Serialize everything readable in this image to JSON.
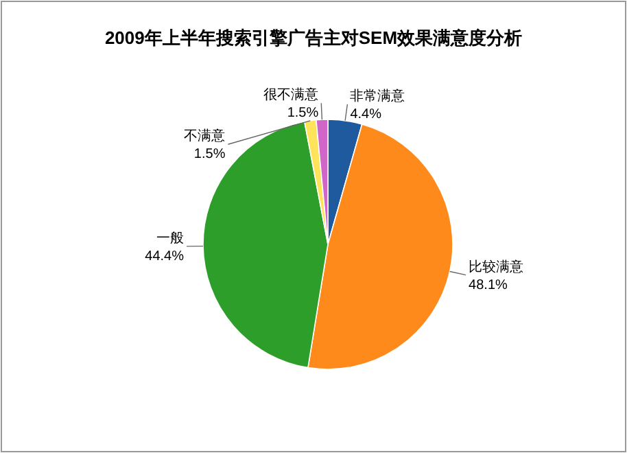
{
  "chart_data": {
    "type": "pie",
    "title": "2009年上半年搜索引擎广告主对SEM效果满意度分析",
    "categories": [
      "非常满意",
      "比较满意",
      "一般",
      "不满意",
      "很不满意"
    ],
    "values": [
      4.4,
      48.1,
      44.4,
      1.5,
      1.5
    ],
    "value_labels": [
      "4.4%",
      "48.1%",
      "44.4%",
      "1.5%",
      "1.5%"
    ],
    "colors": [
      "#1f5a9e",
      "#ff8a1c",
      "#2e9e2a",
      "#ffe35a",
      "#d066c8"
    ]
  }
}
